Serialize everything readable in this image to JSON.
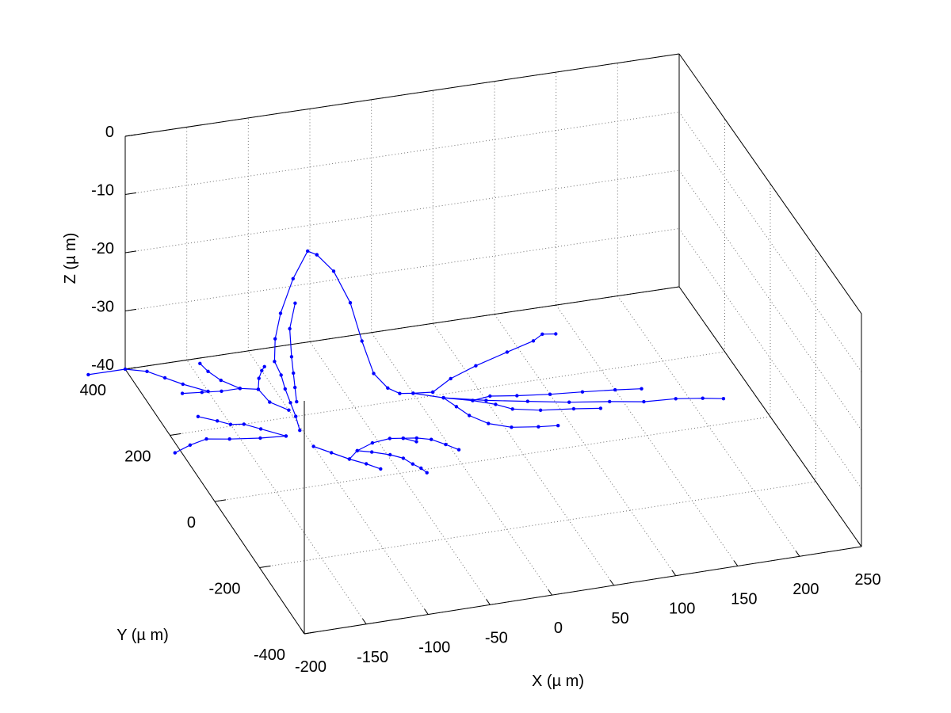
{
  "chart_data": {
    "type": "line",
    "subtype": "3d-line-with-markers",
    "xlabel": "X (µ m)",
    "ylabel": "Y (µ m)",
    "zlabel": "Z (µ m)",
    "xlim": [
      -200,
      250
    ],
    "ylim": [
      -400,
      400
    ],
    "zlim": [
      -40,
      0
    ],
    "x_ticks": [
      -200,
      -150,
      -100,
      -50,
      0,
      50,
      100,
      150,
      200,
      250
    ],
    "y_ticks": [
      -400,
      -200,
      0,
      200,
      400
    ],
    "z_ticks": [
      -40,
      -30,
      -20,
      -10,
      0
    ],
    "x_tick_labels": [
      "-200",
      "-150",
      "-100",
      "-50",
      "0",
      "50",
      "100",
      "150",
      "200",
      "250"
    ],
    "y_tick_labels": [
      "-400",
      "-200",
      "0",
      "200",
      "400"
    ],
    "z_tick_labels": [
      "-40",
      "-30",
      "-20",
      "-10",
      "0"
    ],
    "grid": true,
    "box": true,
    "marker": "dot",
    "series_color": "#0000ff",
    "series": [
      {
        "points": [
          [
            -102,
            160,
            -40
          ],
          [
            -98,
            200,
            -40
          ],
          [
            -95,
            240,
            -40
          ],
          [
            -92,
            280,
            -40
          ],
          [
            -88,
            320,
            -40
          ],
          [
            -86,
            360,
            -40
          ],
          [
            -80,
            390,
            -38
          ],
          [
            -72,
            410,
            -35
          ],
          [
            -60,
            420,
            -30
          ],
          [
            -50,
            410,
            -25
          ],
          [
            -48,
            380,
            -24
          ]
        ]
      },
      {
        "points": [
          [
            -48,
            380,
            -24
          ],
          [
            -38,
            360,
            -26
          ],
          [
            -30,
            330,
            -30
          ],
          [
            -26,
            300,
            -35
          ],
          [
            -22,
            270,
            -39
          ],
          [
            -16,
            240,
            -40
          ],
          [
            -10,
            220,
            -40
          ],
          [
            0,
            215,
            -40
          ],
          [
            15,
            210,
            -40
          ]
        ]
      },
      {
        "points": [
          [
            -62,
            400,
            -33
          ],
          [
            -70,
            380,
            -36
          ],
          [
            -74,
            350,
            -39
          ],
          [
            -78,
            320,
            -40
          ],
          [
            -84,
            280,
            -40
          ],
          [
            -90,
            240,
            -40
          ]
        ]
      },
      {
        "points": [
          [
            -115,
            150,
            -40
          ],
          [
            -130,
            180,
            -40
          ],
          [
            -140,
            200,
            -40
          ],
          [
            -150,
            205,
            -40
          ],
          [
            -158,
            220,
            -40
          ],
          [
            -170,
            240,
            -40
          ]
        ]
      },
      {
        "points": [
          [
            -115,
            150,
            -40
          ],
          [
            -135,
            155,
            -40
          ],
          [
            -158,
            165,
            -40
          ],
          [
            -175,
            175,
            -40
          ],
          [
            -190,
            165,
            -40
          ],
          [
            -205,
            150,
            -40
          ]
        ]
      },
      {
        "points": [
          [
            -100,
            220,
            -40
          ],
          [
            -110,
            250,
            -40
          ],
          [
            -112,
            290,
            -40
          ],
          [
            -106,
            320,
            -40
          ],
          [
            -100,
            340,
            -40
          ],
          [
            -96,
            350,
            -40
          ]
        ]
      },
      {
        "points": [
          [
            -112,
            290,
            -40
          ],
          [
            -125,
            300,
            -40
          ],
          [
            -140,
            300,
            -40
          ],
          [
            -155,
            305,
            -40
          ],
          [
            -170,
            310,
            -40
          ]
        ]
      },
      {
        "points": [
          [
            -125,
            300,
            -40
          ],
          [
            -135,
            330,
            -40
          ],
          [
            -140,
            360,
            -40
          ],
          [
            -142,
            385,
            -40
          ]
        ]
      },
      {
        "points": [
          [
            -150,
            305,
            -40
          ],
          [
            -165,
            335,
            -40
          ],
          [
            -175,
            360,
            -40
          ],
          [
            -185,
            385,
            -40
          ],
          [
            -200,
            400,
            -40
          ],
          [
            -230,
            400,
            -40
          ]
        ]
      },
      {
        "points": [
          [
            -100,
            110,
            -40
          ],
          [
            -90,
            85,
            -40
          ],
          [
            -80,
            60,
            -40
          ],
          [
            -70,
            40,
            -40
          ],
          [
            -62,
            20,
            -40
          ]
        ]
      },
      {
        "points": [
          [
            -80,
            60,
            -40
          ],
          [
            -70,
            80,
            -40
          ],
          [
            -55,
            95,
            -40
          ],
          [
            -40,
            100,
            -40
          ],
          [
            -30,
            95,
            -40
          ],
          [
            -22,
            80,
            -40
          ]
        ]
      },
      {
        "points": [
          [
            -70,
            80,
            -40
          ],
          [
            -60,
            70,
            -40
          ],
          [
            -48,
            55,
            -40
          ],
          [
            -40,
            40,
            -40
          ],
          [
            -36,
            20,
            -40
          ],
          [
            -32,
            5,
            -40
          ],
          [
            -30,
            -10,
            -40
          ]
        ]
      },
      {
        "points": [
          [
            -30,
            95,
            -40
          ],
          [
            -20,
            90,
            -40
          ],
          [
            -10,
            80,
            -40
          ],
          [
            -2,
            60,
            -40
          ],
          [
            5,
            40,
            -40
          ]
        ]
      },
      {
        "points": [
          [
            0,
            215,
            -40
          ],
          [
            20,
            190,
            -40
          ],
          [
            50,
            165,
            -40
          ],
          [
            80,
            145,
            -40
          ],
          [
            110,
            125,
            -40
          ],
          [
            140,
            110,
            -40
          ],
          [
            165,
            95,
            -40
          ],
          [
            190,
            90,
            -40
          ],
          [
            210,
            80,
            -40
          ],
          [
            225,
            70,
            -40
          ]
        ]
      },
      {
        "points": [
          [
            20,
            190,
            -40
          ],
          [
            40,
            170,
            -40
          ],
          [
            55,
            150,
            -40
          ],
          [
            65,
            130,
            -40
          ],
          [
            85,
            115,
            -40
          ],
          [
            110,
            105,
            -40
          ],
          [
            130,
            95,
            -40
          ]
        ]
      },
      {
        "points": [
          [
            40,
            170,
            -40
          ],
          [
            55,
            175,
            -40
          ],
          [
            75,
            165,
            -40
          ],
          [
            100,
            155,
            -40
          ],
          [
            125,
            148,
            -40
          ],
          [
            150,
            140,
            -40
          ],
          [
            170,
            132,
            -40
          ]
        ]
      },
      {
        "points": [
          [
            20,
            190,
            -40
          ],
          [
            25,
            160,
            -40
          ],
          [
            30,
            130,
            -40
          ],
          [
            40,
            100,
            -40
          ],
          [
            55,
            80,
            -40
          ],
          [
            75,
            70,
            -40
          ],
          [
            90,
            65,
            -40
          ]
        ]
      },
      {
        "points": [
          [
            15,
            210,
            -40
          ],
          [
            35,
            240,
            -40
          ],
          [
            60,
            265,
            -40
          ],
          [
            90,
            290,
            -40
          ],
          [
            115,
            310,
            -40
          ],
          [
            125,
            325,
            -40
          ],
          [
            135,
            320,
            -40
          ]
        ]
      }
    ]
  }
}
